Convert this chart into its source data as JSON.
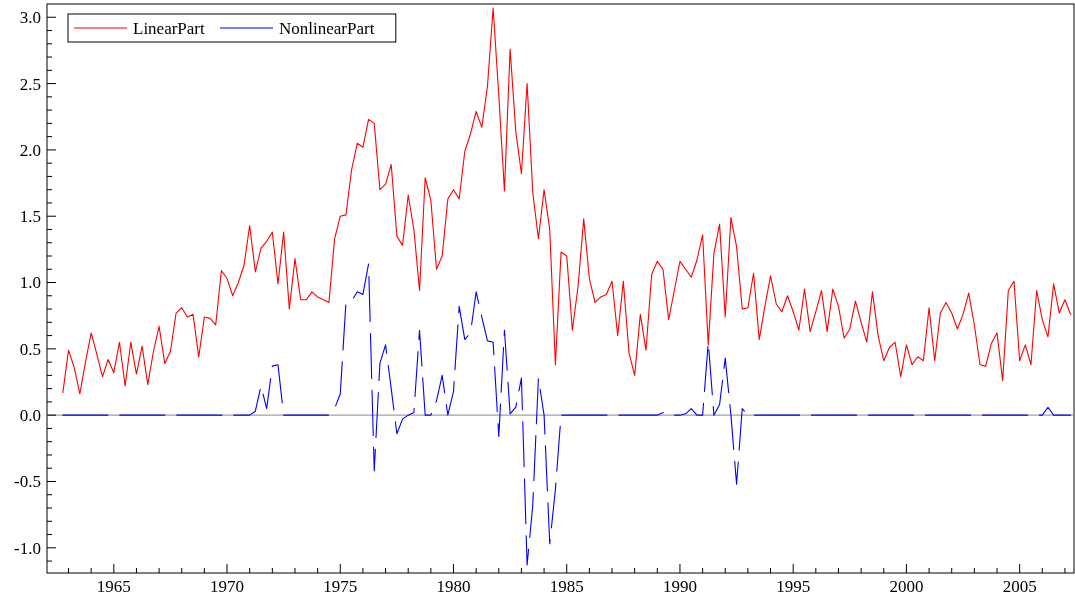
{
  "chart_data": {
    "type": "line",
    "x": [
      1962.75,
      1963,
      1963.25,
      1963.5,
      1963.75,
      1964,
      1964.25,
      1964.5,
      1964.75,
      1965,
      1965.25,
      1965.5,
      1965.75,
      1966,
      1966.25,
      1966.5,
      1966.75,
      1967,
      1967.25,
      1967.5,
      1967.75,
      1968,
      1968.25,
      1968.5,
      1968.75,
      1969,
      1969.25,
      1969.5,
      1969.75,
      1970,
      1970.25,
      1970.5,
      1970.75,
      1971,
      1971.25,
      1971.5,
      1971.75,
      1972,
      1972.25,
      1972.5,
      1972.75,
      1973,
      1973.25,
      1973.5,
      1973.75,
      1974,
      1974.25,
      1974.5,
      1974.75,
      1975,
      1975.25,
      1975.5,
      1975.75,
      1976,
      1976.25,
      1976.5,
      1976.75,
      1977,
      1977.25,
      1977.5,
      1977.75,
      1978,
      1978.25,
      1978.5,
      1978.75,
      1979,
      1979.25,
      1979.5,
      1979.75,
      1980,
      1980.25,
      1980.5,
      1980.75,
      1981,
      1981.25,
      1981.5,
      1981.75,
      1982,
      1982.25,
      1982.5,
      1982.75,
      1983,
      1983.25,
      1983.5,
      1983.75,
      1984,
      1984.25,
      1984.5,
      1984.75,
      1985,
      1985.25,
      1985.5,
      1985.75,
      1986,
      1986.25,
      1986.5,
      1986.75,
      1987,
      1987.25,
      1987.5,
      1987.75,
      1988,
      1988.25,
      1988.5,
      1988.75,
      1989,
      1989.25,
      1989.5,
      1989.75,
      1990,
      1990.25,
      1990.5,
      1990.75,
      1991,
      1991.25,
      1991.5,
      1991.75,
      1992,
      1992.25,
      1992.5,
      1992.75,
      1993,
      1993.25,
      1993.5,
      1993.75,
      1994,
      1994.25,
      1994.5,
      1994.75,
      1995,
      1995.25,
      1995.5,
      1995.75,
      1996,
      1996.25,
      1996.5,
      1996.75,
      1997,
      1997.25,
      1997.5,
      1997.75,
      1998,
      1998.25,
      1998.5,
      1998.75,
      1999,
      1999.25,
      1999.5,
      1999.75,
      2000,
      2000.25,
      2000.5,
      2000.75,
      2001,
      2001.25,
      2001.5,
      2001.75,
      2002,
      2002.25,
      2002.5,
      2002.75,
      2003,
      2003.25,
      2003.5,
      2003.75,
      2004,
      2004.25,
      2004.5,
      2004.75,
      2005,
      2005.25,
      2005.5,
      2005.75,
      2006,
      2006.25,
      2006.5,
      2006.75,
      2007,
      2007.25
    ],
    "series": [
      {
        "name": "LinearPart",
        "color": "#ff0000",
        "line_style": "solid",
        "values": [
          0.17,
          0.49,
          0.36,
          0.16,
          0.4,
          0.62,
          0.46,
          0.29,
          0.42,
          0.32,
          0.55,
          0.22,
          0.55,
          0.31,
          0.52,
          0.23,
          0.48,
          0.67,
          0.39,
          0.48,
          0.77,
          0.81,
          0.74,
          0.76,
          0.44,
          0.74,
          0.73,
          0.68,
          1.09,
          1.03,
          0.9,
          1.0,
          1.13,
          1.43,
          1.08,
          1.26,
          1.31,
          1.38,
          0.99,
          1.38,
          0.8,
          1.18,
          0.87,
          0.87,
          0.93,
          0.89,
          0.87,
          0.85,
          1.33,
          1.5,
          1.51,
          1.85,
          2.05,
          2.02,
          2.23,
          2.2,
          1.7,
          1.74,
          1.89,
          1.35,
          1.28,
          1.66,
          1.4,
          0.94,
          1.79,
          1.62,
          1.1,
          1.2,
          1.63,
          1.7,
          1.63,
          1.99,
          2.12,
          2.29,
          2.17,
          2.48,
          3.07,
          2.41,
          1.69,
          2.76,
          2.14,
          1.82,
          2.5,
          1.68,
          1.33,
          1.7,
          1.4,
          0.38,
          1.23,
          1.2,
          0.64,
          0.97,
          1.48,
          1.03,
          0.85,
          0.89,
          0.91,
          1.01,
          0.6,
          1.01,
          0.47,
          0.3,
          0.76,
          0.49,
          1.06,
          1.16,
          1.1,
          0.72,
          0.94,
          1.16,
          1.1,
          1.04,
          1.17,
          1.36,
          0.53,
          1.22,
          1.44,
          0.74,
          1.49,
          1.27,
          0.8,
          0.81,
          1.07,
          0.57,
          0.82,
          1.05,
          0.84,
          0.78,
          0.9,
          0.78,
          0.64,
          0.95,
          0.63,
          0.78,
          0.94,
          0.63,
          0.95,
          0.82,
          0.58,
          0.65,
          0.86,
          0.7,
          0.55,
          0.93,
          0.6,
          0.41,
          0.51,
          0.55,
          0.29,
          0.53,
          0.38,
          0.44,
          0.41,
          0.81,
          0.41,
          0.77,
          0.85,
          0.77,
          0.65,
          0.76,
          0.92,
          0.68,
          0.38,
          0.37,
          0.54,
          0.62,
          0.26,
          0.94,
          1.01,
          0.41,
          0.53,
          0.38,
          0.94,
          0.72,
          0.59,
          0.99,
          0.77,
          0.87,
          0.76
        ]
      },
      {
        "name": "NonlinearPart",
        "color": "#0000ff",
        "line_style": "dashed",
        "values": [
          0,
          0,
          0,
          0,
          0,
          0,
          0,
          0,
          0,
          0,
          0,
          0,
          0,
          0,
          0,
          0,
          0,
          0,
          0,
          0,
          0,
          0,
          0,
          0,
          0,
          0,
          0,
          0,
          0,
          0,
          0,
          0,
          0,
          0,
          0.03,
          0.22,
          0.05,
          0.37,
          0.38,
          0,
          0,
          0,
          0,
          0,
          0,
          0,
          0,
          0,
          0.05,
          0.16,
          0.85,
          0.86,
          0.93,
          0.91,
          1.14,
          -0.42,
          0.39,
          0.53,
          0.2,
          -0.14,
          -0.03,
          0,
          0.02,
          0.64,
          0,
          0,
          0.11,
          0.3,
          0,
          0.18,
          0.82,
          0.57,
          0.62,
          0.93,
          0.74,
          0.56,
          0.55,
          -0.16,
          0.64,
          0.01,
          0.06,
          0.28,
          -1.13,
          -0.68,
          0.28,
          0,
          -0.97,
          -0.56,
          0,
          0,
          0,
          0,
          0,
          0,
          0,
          0,
          0,
          0,
          0,
          0,
          0,
          0,
          0,
          0,
          0,
          0,
          0.02,
          0,
          0,
          0,
          0.01,
          0.05,
          0,
          0,
          0.55,
          0,
          0.08,
          0.43,
          0,
          -0.52,
          0.05,
          0,
          0,
          0,
          0,
          0,
          0,
          0,
          0,
          0,
          0,
          0,
          0,
          0,
          0,
          0,
          0,
          0,
          0,
          0,
          0,
          0,
          0,
          0,
          0,
          0,
          0,
          0,
          0,
          0,
          0,
          0,
          0,
          0,
          0,
          0,
          0,
          0,
          0,
          0,
          0,
          0,
          0,
          0,
          0,
          0,
          0,
          0,
          0,
          0,
          0,
          0,
          0,
          0,
          0.06,
          0,
          0,
          0,
          0
        ]
      }
    ],
    "xlim": [
      1962.05,
      2007.4
    ],
    "ylim": [
      -1.19,
      3.1
    ],
    "xticks": [
      {
        "value": 1963,
        "label": null
      },
      {
        "value": 1964,
        "label": null
      },
      1965,
      {
        "value": 1966,
        "label": null
      },
      {
        "value": 1967,
        "label": null
      },
      {
        "value": 1968,
        "label": null
      },
      {
        "value": 1969,
        "label": null
      },
      1970,
      {
        "value": 1971,
        "label": null
      },
      {
        "value": 1972,
        "label": null
      },
      {
        "value": 1973,
        "label": null
      },
      {
        "value": 1974,
        "label": null
      },
      1975,
      {
        "value": 1976,
        "label": null
      },
      {
        "value": 1977,
        "label": null
      },
      {
        "value": 1978,
        "label": null
      },
      {
        "value": 1979,
        "label": null
      },
      1980,
      {
        "value": 1981,
        "label": null
      },
      {
        "value": 1982,
        "label": null
      },
      {
        "value": 1983,
        "label": null
      },
      {
        "value": 1984,
        "label": null
      },
      1985,
      {
        "value": 1986,
        "label": null
      },
      {
        "value": 1987,
        "label": null
      },
      {
        "value": 1988,
        "label": null
      },
      {
        "value": 1989,
        "label": null
      },
      1990,
      {
        "value": 1991,
        "label": null
      },
      {
        "value": 1992,
        "label": null
      },
      {
        "value": 1993,
        "label": null
      },
      {
        "value": 1994,
        "label": null
      },
      1995,
      {
        "value": 1996,
        "label": null
      },
      {
        "value": 1997,
        "label": null
      },
      {
        "value": 1998,
        "label": null
      },
      {
        "value": 1999,
        "label": null
      },
      2000,
      {
        "value": 2001,
        "label": null
      },
      {
        "value": 2002,
        "label": null
      },
      {
        "value": 2003,
        "label": null
      },
      {
        "value": 2004,
        "label": null
      },
      2005,
      {
        "value": 2006,
        "label": null
      },
      {
        "value": 2007,
        "label": null
      }
    ],
    "yticks": [
      {
        "value": -1.1,
        "label": null
      },
      {
        "value": -1.0,
        "label": "-1.0"
      },
      {
        "value": -0.9,
        "label": null
      },
      {
        "value": -0.8,
        "label": null
      },
      {
        "value": -0.7,
        "label": null
      },
      {
        "value": -0.6,
        "label": null
      },
      {
        "value": -0.5,
        "label": "-0.5"
      },
      {
        "value": -0.4,
        "label": null
      },
      {
        "value": -0.3,
        "label": null
      },
      {
        "value": -0.2,
        "label": null
      },
      {
        "value": -0.1,
        "label": null
      },
      {
        "value": 0,
        "label": "0.0"
      },
      {
        "value": 0.1,
        "label": null
      },
      {
        "value": 0.2,
        "label": null
      },
      {
        "value": 0.3,
        "label": null
      },
      {
        "value": 0.4,
        "label": null
      },
      {
        "value": 0.5,
        "label": "0.5"
      },
      {
        "value": 0.6,
        "label": null
      },
      {
        "value": 0.7,
        "label": null
      },
      {
        "value": 0.8,
        "label": null
      },
      {
        "value": 0.9,
        "label": null
      },
      {
        "value": 1.0,
        "label": "1.0"
      },
      {
        "value": 1.1,
        "label": null
      },
      {
        "value": 1.2,
        "label": null
      },
      {
        "value": 1.3,
        "label": null
      },
      {
        "value": 1.4,
        "label": null
      },
      {
        "value": 1.5,
        "label": "1.5"
      },
      {
        "value": 1.6,
        "label": null
      },
      {
        "value": 1.7,
        "label": null
      },
      {
        "value": 1.8,
        "label": null
      },
      {
        "value": 1.9,
        "label": null
      },
      {
        "value": 2.0,
        "label": "2.0"
      },
      {
        "value": 2.1,
        "label": null
      },
      {
        "value": 2.2,
        "label": null
      },
      {
        "value": 2.3,
        "label": null
      },
      {
        "value": 2.4,
        "label": null
      },
      {
        "value": 2.5,
        "label": "2.5"
      },
      {
        "value": 2.6,
        "label": null
      },
      {
        "value": 2.7,
        "label": null
      },
      {
        "value": 2.8,
        "label": null
      },
      {
        "value": 2.9,
        "label": null
      },
      {
        "value": 3.0,
        "label": "3.0"
      }
    ],
    "ref_lines": [
      {
        "axis": "y",
        "value": 0,
        "color": "#a0a0a0"
      }
    ],
    "grid": false,
    "legend": "top left",
    "marker": "none"
  }
}
